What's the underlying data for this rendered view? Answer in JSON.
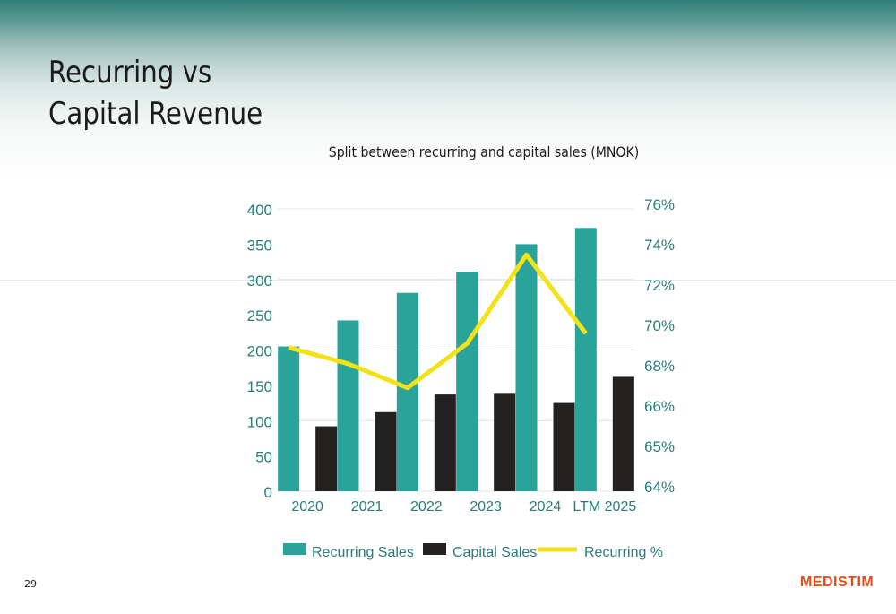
{
  "slide": {
    "title_line1": "Recurring vs",
    "title_line2": "Capital Revenue",
    "page_number": "29",
    "logo_text": "MEDISTIM"
  },
  "colors": {
    "recurring": "#2aa39a",
    "capital": "#232220",
    "recurring_pct": "#f2e21a",
    "axis_text": "#2a7d78",
    "logo": "#e04e1b"
  },
  "chart_data": {
    "type": "bar",
    "title": "Split between recurring and capital sales (MNOK)",
    "categories": [
      "2020",
      "2021",
      "2022",
      "2023",
      "2024",
      "LTM 2025"
    ],
    "series": [
      {
        "name": "Recurring Sales",
        "values": [
          205,
          242,
          281,
          311,
          350,
          373
        ]
      },
      {
        "name": "Capital Sales",
        "values": [
          92,
          112,
          137,
          138,
          125,
          162
        ]
      }
    ],
    "line_series": {
      "name": "Recurring %",
      "values": [
        68.9,
        68.1,
        66.9,
        69.1,
        73.5,
        69.6
      ]
    },
    "y_left": {
      "min": 0,
      "max": 400,
      "ticks": [
        "0",
        "50",
        "100",
        "150",
        "200",
        "250",
        "300",
        "350",
        "400"
      ]
    },
    "y_right": {
      "min": 64,
      "max": 76,
      "ticks": [
        "64%",
        "65%",
        "66%",
        "68%",
        "70%",
        "72%",
        "74%",
        "76%"
      ]
    },
    "grid": true,
    "legend_position": "bottom"
  }
}
